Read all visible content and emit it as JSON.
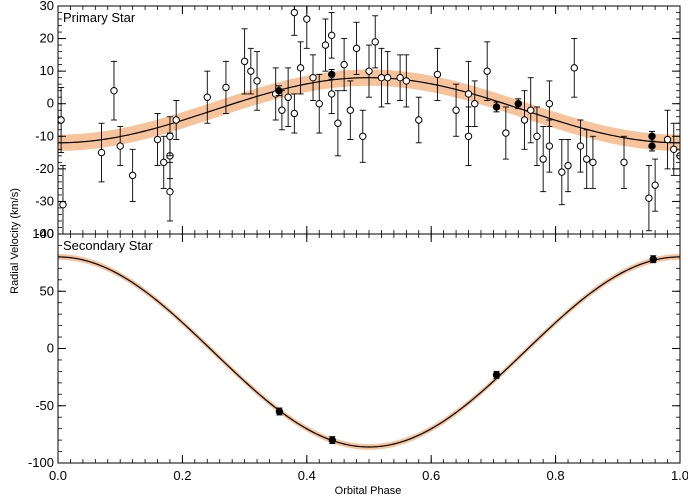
{
  "chart_data": {
    "type": "scatter",
    "ylabel": "Radial Velocity (km/s)",
    "xlabel": "Orbital Phase",
    "x_ticks": [
      "0.0",
      "0.2",
      "0.4",
      "0.6",
      "0.8",
      "1.0"
    ],
    "colors": {
      "band": "#f6b98a",
      "model": "#000000",
      "points": "#000000"
    },
    "panels": [
      {
        "title": "Primary Star",
        "xlim": [
          0.0,
          1.0
        ],
        "ylim": [
          -40,
          30
        ],
        "y_ticks": [
          "-40",
          "-30",
          "-20",
          "-10",
          "0",
          "10",
          "20",
          "30"
        ],
        "model": {
          "gamma": -2,
          "amplitude": -10,
          "band_halfwidth": 2.5
        },
        "open_points": [
          {
            "x": 0.005,
            "y": -5,
            "err": 10
          },
          {
            "x": 0.008,
            "y": -31,
            "err": 12
          },
          {
            "x": 0.07,
            "y": -15,
            "err": 9
          },
          {
            "x": 0.09,
            "y": 4,
            "err": 9
          },
          {
            "x": 0.1,
            "y": -13,
            "err": 6
          },
          {
            "x": 0.12,
            "y": -22,
            "err": 8
          },
          {
            "x": 0.16,
            "y": -11,
            "err": 8
          },
          {
            "x": 0.17,
            "y": -18,
            "err": 8
          },
          {
            "x": 0.18,
            "y": -27,
            "err": 9
          },
          {
            "x": 0.18,
            "y": -16,
            "err": 7
          },
          {
            "x": 0.19,
            "y": -5,
            "err": 6
          },
          {
            "x": 0.18,
            "y": -10,
            "err": 6
          },
          {
            "x": 0.24,
            "y": 2,
            "err": 8
          },
          {
            "x": 0.27,
            "y": 5,
            "err": 8
          },
          {
            "x": 0.3,
            "y": 13,
            "err": 10
          },
          {
            "x": 0.31,
            "y": 10,
            "err": 7
          },
          {
            "x": 0.32,
            "y": 7,
            "err": 9
          },
          {
            "x": 0.35,
            "y": 3,
            "err": 8
          },
          {
            "x": 0.36,
            "y": -2,
            "err": 6
          },
          {
            "x": 0.37,
            "y": 2,
            "err": 9
          },
          {
            "x": 0.38,
            "y": -3,
            "err": 6
          },
          {
            "x": 0.38,
            "y": 28,
            "err": 7
          },
          {
            "x": 0.39,
            "y": 11,
            "err": 8
          },
          {
            "x": 0.4,
            "y": 26,
            "err": 9
          },
          {
            "x": 0.41,
            "y": 8,
            "err": 7
          },
          {
            "x": 0.42,
            "y": 0,
            "err": 9
          },
          {
            "x": 0.43,
            "y": 18,
            "err": 8
          },
          {
            "x": 0.44,
            "y": 21,
            "err": 7
          },
          {
            "x": 0.44,
            "y": 3,
            "err": 6
          },
          {
            "x": 0.45,
            "y": -6,
            "err": 10
          },
          {
            "x": 0.46,
            "y": 12,
            "err": 8
          },
          {
            "x": 0.47,
            "y": -2,
            "err": 9
          },
          {
            "x": 0.48,
            "y": 17,
            "err": 8
          },
          {
            "x": 0.49,
            "y": -10,
            "err": 8
          },
          {
            "x": 0.5,
            "y": 10,
            "err": 8
          },
          {
            "x": 0.51,
            "y": 19,
            "err": 8
          },
          {
            "x": 0.52,
            "y": 8,
            "err": 9
          },
          {
            "x": 0.53,
            "y": 8,
            "err": 8
          },
          {
            "x": 0.55,
            "y": 8,
            "err": 7
          },
          {
            "x": 0.56,
            "y": 7,
            "err": 8
          },
          {
            "x": 0.58,
            "y": -5,
            "err": 7
          },
          {
            "x": 0.61,
            "y": 9,
            "err": 8
          },
          {
            "x": 0.64,
            "y": -2,
            "err": 8
          },
          {
            "x": 0.66,
            "y": 3,
            "err": 10
          },
          {
            "x": 0.66,
            "y": -10,
            "err": 9
          },
          {
            "x": 0.67,
            "y": 0,
            "err": 7
          },
          {
            "x": 0.69,
            "y": 10,
            "err": 9
          },
          {
            "x": 0.72,
            "y": -9,
            "err": 8
          },
          {
            "x": 0.75,
            "y": -5,
            "err": 9
          },
          {
            "x": 0.76,
            "y": -2,
            "err": 10
          },
          {
            "x": 0.77,
            "y": -10,
            "err": 9
          },
          {
            "x": 0.78,
            "y": -17,
            "err": 10
          },
          {
            "x": 0.79,
            "y": -13,
            "err": 8
          },
          {
            "x": 0.79,
            "y": 0,
            "err": 7
          },
          {
            "x": 0.81,
            "y": -21,
            "err": 10
          },
          {
            "x": 0.82,
            "y": -19,
            "err": 8
          },
          {
            "x": 0.83,
            "y": 11,
            "err": 9
          },
          {
            "x": 0.84,
            "y": -13,
            "err": 8
          },
          {
            "x": 0.85,
            "y": -17,
            "err": 9
          },
          {
            "x": 0.86,
            "y": -18,
            "err": 8
          },
          {
            "x": 0.91,
            "y": -18,
            "err": 8
          },
          {
            "x": 0.95,
            "y": -29,
            "err": 10
          },
          {
            "x": 0.96,
            "y": -25,
            "err": 8
          },
          {
            "x": 0.98,
            "y": -11,
            "err": 9
          },
          {
            "x": 0.99,
            "y": -14,
            "err": 8
          },
          {
            "x": 1.0,
            "y": -16,
            "err": 10
          }
        ],
        "filled_points": [
          {
            "x": 0.355,
            "y": 4,
            "err": 1.5
          },
          {
            "x": 0.44,
            "y": 9,
            "err": 1.5
          },
          {
            "x": 0.705,
            "y": -1,
            "err": 1.5
          },
          {
            "x": 0.74,
            "y": 0,
            "err": 1.5
          },
          {
            "x": 0.955,
            "y": -13,
            "err": 1.5
          },
          {
            "x": 0.955,
            "y": -10,
            "err": 1.5
          }
        ]
      },
      {
        "title": "Secondary Star",
        "xlim": [
          0.0,
          1.0
        ],
        "ylim": [
          -100,
          100
        ],
        "y_ticks": [
          "-100",
          "-50",
          "0",
          "50",
          "100"
        ],
        "model": {
          "gamma": -3,
          "amplitude": 83,
          "band_halfwidth": 2.5
        },
        "open_points": [],
        "filled_points": [
          {
            "x": 0.356,
            "y": -55,
            "err": 3
          },
          {
            "x": 0.441,
            "y": -80,
            "err": 3
          },
          {
            "x": 0.705,
            "y": -23,
            "err": 3
          },
          {
            "x": 0.957,
            "y": 78,
            "err": 3
          }
        ]
      }
    ]
  }
}
